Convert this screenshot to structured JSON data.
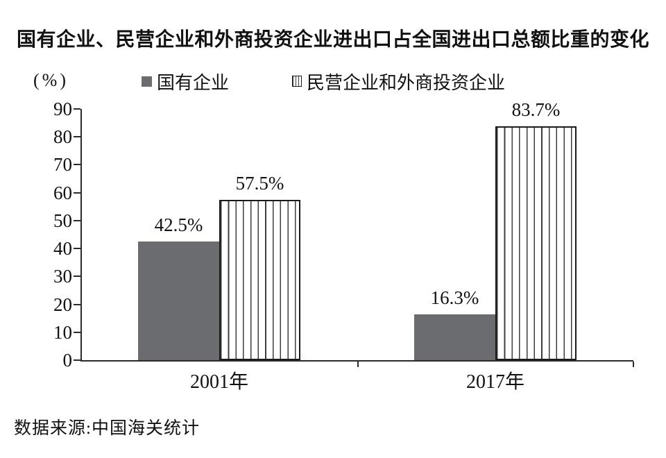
{
  "title": "国有企业、民营企业和外商投资企业进出口占全国进出口总额比重的变化",
  "unit_label": "(%)",
  "source": "数据来源:中国海关统计",
  "legend": {
    "items": [
      {
        "label": "国有企业",
        "swatch": "solid-gray-square"
      },
      {
        "label": "民营企业和外商投资企业",
        "swatch": "vertical-striped-square"
      }
    ]
  },
  "colors": {
    "solid_bar": "#6b6c70",
    "stripe_line": "#3c3c3c",
    "bar_border": "#1a1a1a",
    "axis": "#2b2b2b",
    "text": "#111111",
    "background": "#ffffff"
  },
  "chart_data": {
    "type": "bar",
    "categories": [
      "2001年",
      "2017年"
    ],
    "series": [
      {
        "name": "国有企业",
        "pattern": "solid",
        "values": [
          42.5,
          16.3
        ]
      },
      {
        "name": "民营企业和外商投资企业",
        "pattern": "vertical-stripes",
        "values": [
          57.5,
          83.7
        ]
      }
    ],
    "value_labels": [
      [
        "42.5%",
        "16.3%"
      ],
      [
        "57.5%",
        "83.7%"
      ]
    ],
    "ylabel": "(%)",
    "ylim": [
      0,
      90
    ],
    "yticks": [
      0,
      10,
      20,
      30,
      40,
      50,
      60,
      70,
      80,
      90
    ],
    "grid": false,
    "legend_position": "top"
  }
}
